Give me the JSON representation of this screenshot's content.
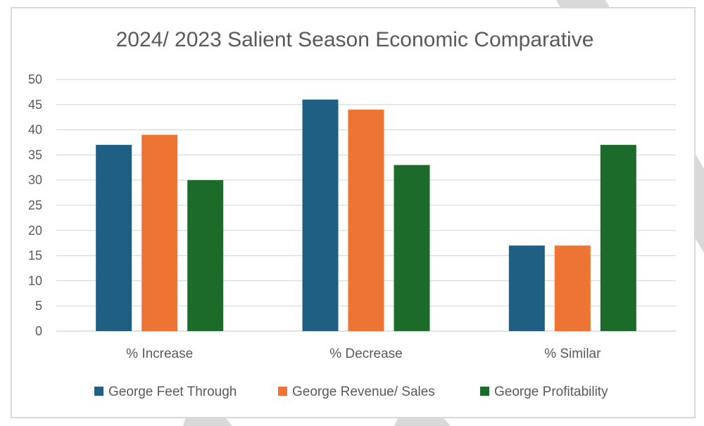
{
  "colors": {
    "background_stripe": "#d9d9d9",
    "frame_border": "#d9d9d9",
    "gridline": "#d9d9d9",
    "axis_line": "#d9d9d9",
    "text": "#595959"
  },
  "chart_data": {
    "type": "bar",
    "title": "2024/ 2023 Salient Season Economic Comparative",
    "xlabel": "",
    "ylabel": "",
    "categories": [
      "% Increase",
      "% Decrease",
      "% Similar"
    ],
    "ylim": [
      0,
      50
    ],
    "yticks": [
      0,
      5,
      10,
      15,
      20,
      25,
      30,
      35,
      40,
      45,
      50
    ],
    "grid": true,
    "legend_position": "bottom",
    "series": [
      {
        "name": "George Feet Through",
        "color": "#1f5f84",
        "values": [
          37,
          46,
          17
        ]
      },
      {
        "name": "George Revenue/ Sales",
        "color": "#ed7432",
        "values": [
          39,
          44,
          17
        ]
      },
      {
        "name": "George Profitability",
        "color": "#1d6b2a",
        "values": [
          30,
          33,
          37
        ]
      }
    ]
  }
}
